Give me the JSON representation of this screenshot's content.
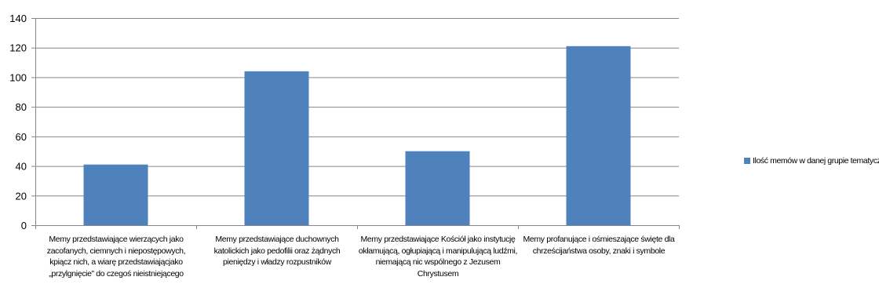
{
  "chart_data": {
    "type": "bar",
    "categories": [
      "Memy przedstawiające wierzących jako zacofanych, ciemnych i niepostępowych, kpiącz nich, a wiarę przedstawiającjako „przylgnięcie” do czegoś nieistniejącego",
      "Memy przedstawiające duchownych katolickich jako pedofilii oraz żądnych pieniędzy i władzy rozpustników",
      "Memy przedstawiające Kościół jako instytucję okłamującą, ogłupiającą i manipulującą ludźmi, niemającą nic wspólnego z Jezusem Chrystusem",
      "Memy profanujące i ośmieszające święte dla chrześcijaństwa osoby, znaki i symbole"
    ],
    "series": [
      {
        "name": "Ilość memów w danej grupie tematycznej",
        "values": [
          41,
          104,
          50,
          121
        ]
      }
    ],
    "ylim": [
      0,
      140
    ],
    "yticks": [
      0,
      20,
      40,
      60,
      80,
      100,
      120,
      140
    ],
    "grid": true,
    "legend": "right",
    "bar_color": "#4f81bd"
  }
}
